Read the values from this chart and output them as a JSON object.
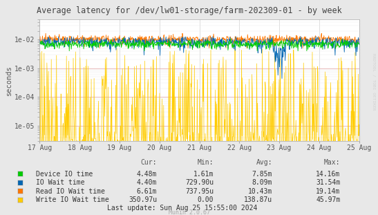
{
  "title": "Average latency for /dev/lw01-storage/farm-202309-01 - by week",
  "ylabel": "seconds",
  "xlabel_ticks": [
    "17 Aug",
    "18 Aug",
    "19 Aug",
    "20 Aug",
    "21 Aug",
    "22 Aug",
    "23 Aug",
    "24 Aug",
    "25 Aug"
  ],
  "ylim": [
    3e-06,
    0.05
  ],
  "background_color": "#e8e8e8",
  "plot_bg_color": "#ffffff",
  "grid_color_major_y": "#d8b0b0",
  "grid_color_minor": "#e0e0e0",
  "watermark": "RRDTOOL / TOBI OETIKER",
  "munin_version": "Munin 2.0.67",
  "colors": {
    "Device IO time": "#00cc00",
    "IO Wait time": "#0066b3",
    "Read IO Wait time": "#ff7700",
    "Write IO Wait time": "#ffcc00"
  },
  "legend_data": [
    [
      "Device IO time",
      "4.48m",
      "1.61m",
      "7.85m",
      "14.16m"
    ],
    [
      "IO Wait time",
      "4.40m",
      "729.90u",
      "8.09m",
      "31.54m"
    ],
    [
      "Read IO Wait time",
      "6.61m",
      "737.95u",
      "10.43m",
      "19.14m"
    ],
    [
      "Write IO Wait time",
      "350.97u",
      "0.00",
      "138.87u",
      "45.97m"
    ]
  ],
  "last_update": "Last update: Sun Aug 25 15:55:00 2024",
  "n_points": 800,
  "seed": 42
}
